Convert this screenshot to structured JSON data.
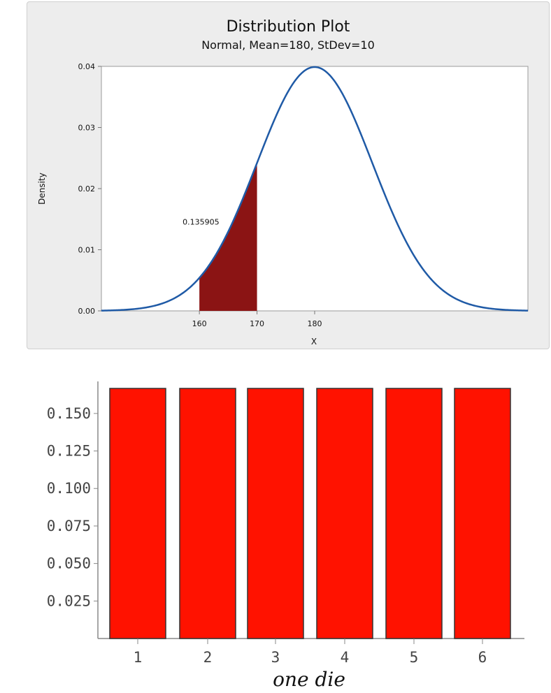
{
  "chart_data": [
    {
      "type": "area",
      "title": "Distribution Plot",
      "subtitle": "Normal, Mean=180, StDev=10",
      "xlabel": "X",
      "ylabel": "Density",
      "distribution": {
        "family": "normal",
        "mean": 180,
        "stdev": 10
      },
      "xlim": [
        143,
        217
      ],
      "ylim": [
        0,
        0.04
      ],
      "x_ticks": [
        "160",
        "170",
        "180"
      ],
      "y_ticks": [
        "0.00",
        "0.01",
        "0.02",
        "0.03",
        "0.04"
      ],
      "shaded_region": {
        "from": 160,
        "to": 170,
        "area_label": "0.135905"
      },
      "colors": {
        "curve": "#1f5aa6",
        "shade": "#8b1414",
        "plot_bg": "#ffffff",
        "panel_bg": "#ededed"
      },
      "grid": false,
      "legend": "none"
    },
    {
      "type": "bar",
      "title": "",
      "xlabel": "one die",
      "ylabel": "",
      "categories": [
        "1",
        "2",
        "3",
        "4",
        "5",
        "6"
      ],
      "values": [
        0.1667,
        0.1667,
        0.1667,
        0.1667,
        0.1667,
        0.1667
      ],
      "ylim": [
        0,
        0.1667
      ],
      "y_ticks": [
        "0.150",
        "0.125",
        "0.100",
        "0.075",
        "0.050",
        "0.025"
      ],
      "colors": {
        "bar": "#ff1200",
        "bar_edge": "#333333",
        "axis": "#888888"
      },
      "grid": false,
      "legend": "none"
    }
  ]
}
